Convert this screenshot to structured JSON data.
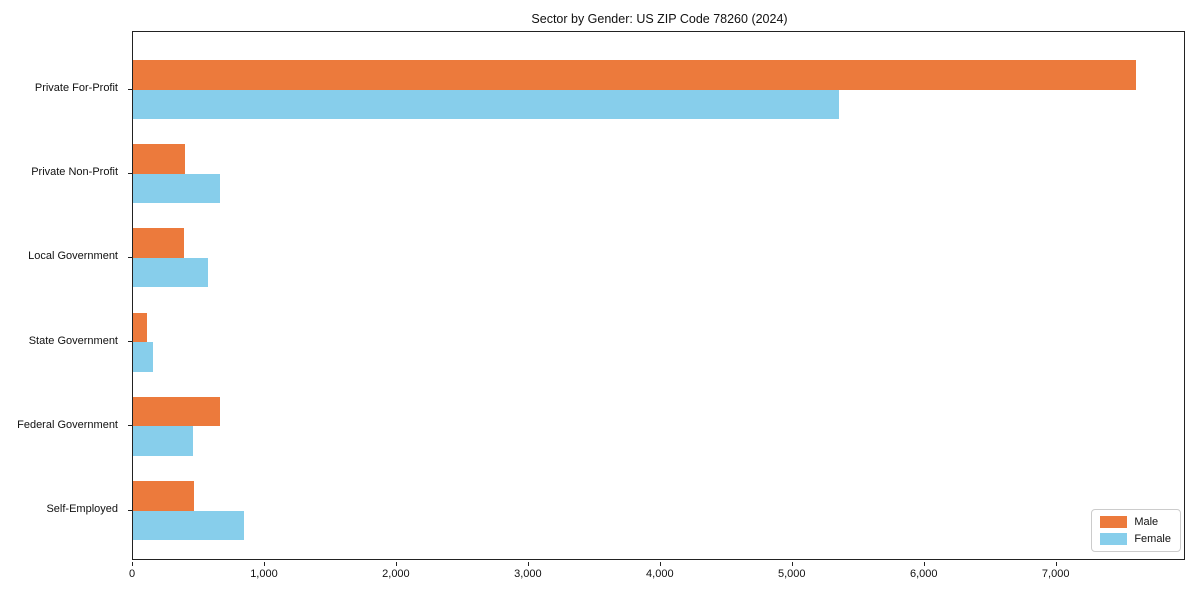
{
  "chart_data": {
    "type": "bar",
    "orientation": "horizontal",
    "title": "Sector by Gender: US ZIP Code 78260 (2024)",
    "categories": [
      "Private For-Profit",
      "Private Non-Profit",
      "Local Government",
      "State Government",
      "Federal Government",
      "Self-Employed"
    ],
    "series": [
      {
        "name": "Male",
        "color": "#EC7A3C",
        "values": [
          7600,
          395,
          390,
          105,
          660,
          465
        ]
      },
      {
        "name": "Female",
        "color": "#87CEEB",
        "values": [
          5350,
          660,
          570,
          150,
          455,
          840
        ]
      }
    ],
    "xlabel": "",
    "ylabel": "",
    "xlim": [
      0,
      7980
    ],
    "x_ticks": [
      {
        "value": 0,
        "label": "0"
      },
      {
        "value": 1000,
        "label": "1,000"
      },
      {
        "value": 2000,
        "label": "2,000"
      },
      {
        "value": 3000,
        "label": "3,000"
      },
      {
        "value": 4000,
        "label": "4,000"
      },
      {
        "value": 5000,
        "label": "5,000"
      },
      {
        "value": 6000,
        "label": "6,000"
      },
      {
        "value": 7000,
        "label": "7,000"
      }
    ],
    "grid": false,
    "legend_position": "lower right"
  }
}
